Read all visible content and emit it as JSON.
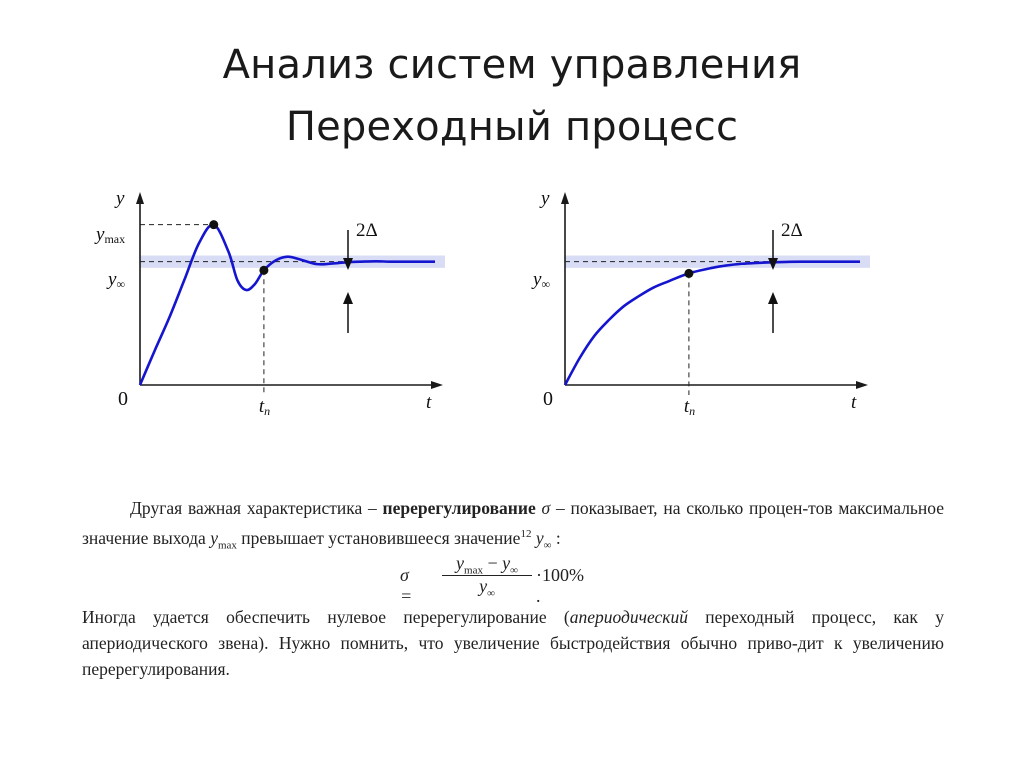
{
  "slide": {
    "title_line1": "Анализ систем управления",
    "title_line2": "Переходный процесс"
  },
  "colors": {
    "curve": "#1515d0",
    "band": "#d9dcf5",
    "axis": "#1a1a1a"
  },
  "chart_data": [
    {
      "type": "line",
      "variant": "oscillatory",
      "title": "",
      "xlabel": "t",
      "ylabel": "y",
      "y_labels": {
        "ymax": "y",
        "ymax_sub": "max",
        "yinf": "y",
        "yinf_sub": "∞"
      },
      "x_labels": {
        "origin": "0",
        "tp": "t",
        "tp_sub": "п"
      },
      "delta_label": "2Δ",
      "xlim": [
        0,
        10
      ],
      "ylim": [
        0,
        1.5
      ],
      "y_inf": 1.0,
      "y_max": 1.3,
      "band_half_width": 0.05,
      "t_peak": 2.5,
      "t_p": 4.2,
      "series": [
        {
          "x": [
            0,
            0.5,
            1.0,
            1.5,
            2.0,
            2.5,
            3.0,
            3.3,
            3.6,
            3.9,
            4.2,
            4.6,
            5.0,
            5.4,
            6.0,
            6.5,
            7.0,
            7.5,
            8.0,
            8.5,
            9.0,
            10.0
          ],
          "y": [
            0,
            0.28,
            0.55,
            0.85,
            1.15,
            1.3,
            1.08,
            0.85,
            0.77,
            0.82,
            0.93,
            1.01,
            1.04,
            1.02,
            0.98,
            0.985,
            0.995,
            1.0,
            1.003,
            1.0,
            1.0,
            1.0
          ]
        }
      ]
    },
    {
      "type": "line",
      "variant": "aperiodic",
      "title": "",
      "xlabel": "t",
      "ylabel": "y",
      "y_labels": {
        "yinf": "y",
        "yinf_sub": "∞"
      },
      "x_labels": {
        "origin": "0",
        "tp": "t",
        "tp_sub": "п"
      },
      "delta_label": "2Δ",
      "xlim": [
        0,
        10
      ],
      "ylim": [
        0,
        1.5
      ],
      "y_inf": 1.0,
      "band_half_width": 0.05,
      "t_p": 4.2,
      "series": [
        {
          "x": [
            0,
            0.5,
            1.0,
            1.5,
            2.0,
            2.5,
            3.0,
            3.5,
            4.2,
            5.0,
            5.5,
            6.0,
            6.5,
            7.0,
            7.5,
            8.0,
            9.0,
            10.0
          ],
          "y": [
            0,
            0.22,
            0.4,
            0.53,
            0.64,
            0.72,
            0.79,
            0.84,
            0.905,
            0.95,
            0.97,
            0.983,
            0.99,
            0.995,
            0.998,
            1.0,
            1.0,
            1.0
          ]
        }
      ]
    }
  ],
  "text": {
    "p1_a": "Другая важная характеристика – ",
    "p1_bold": "перерегулирование",
    "p1_sigma": "σ",
    "p1_b": " – показывает, на сколько процен-тов максимальное значение выхода ",
    "p1_ymax": "y",
    "p1_ymax_sub": "max",
    "p1_c": " превышает установившееся значение",
    "p1_sup": "12",
    "p1_yinf": "y",
    "p1_yinf_sub": "∞",
    "p1_end": " :",
    "formula_lhs": "σ =",
    "formula_num_y1": "y",
    "formula_num_s1": "max",
    "formula_minus": " − ",
    "formula_num_y2": "y",
    "formula_num_s2": "∞",
    "formula_den_y": "y",
    "formula_den_s": "∞",
    "formula_rhs": "·100% .",
    "p2_a": "Иногда удается обеспечить нулевое перерегулирование (",
    "p2_ital": "апериодический",
    "p2_b": " переходный процесс, как у апериодического звена). Нужно помнить, что увеличение быстродействия обычно приво-дит к увеличению перерегулирования."
  }
}
